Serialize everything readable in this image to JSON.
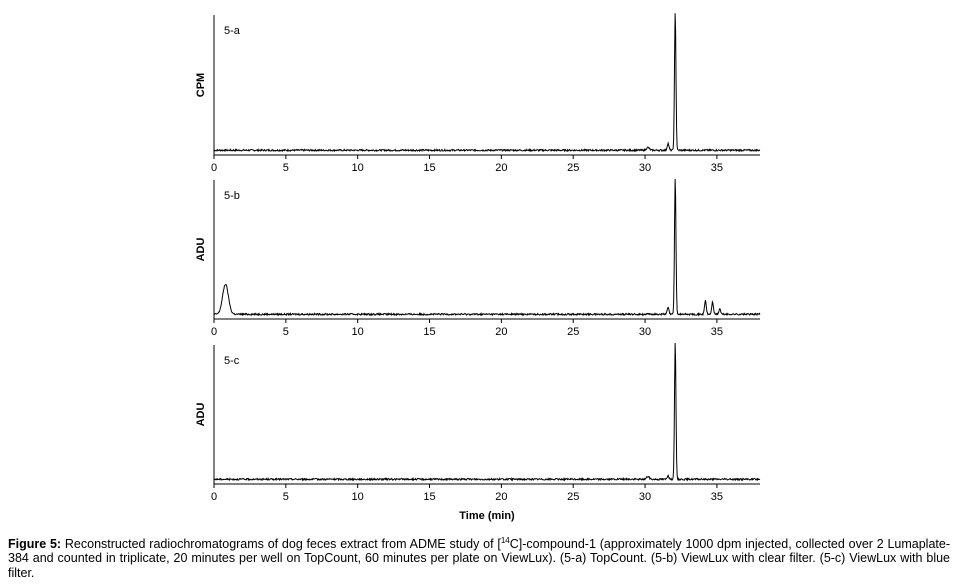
{
  "chart_data": [
    {
      "type": "line",
      "panel_label": "5-a",
      "ylabel": "CPM",
      "xlabel": "",
      "xlim": [
        0,
        38
      ],
      "x_ticks": [
        0,
        5,
        10,
        15,
        20,
        25,
        30,
        35
      ],
      "series": [
        {
          "baseline": 0.02,
          "peaks": [
            [
              30.2,
              0.02,
              0.1
            ],
            [
              31.6,
              0.05,
              0.06
            ],
            [
              32.1,
              1.0,
              0.05
            ]
          ]
        }
      ]
    },
    {
      "type": "line",
      "panel_label": "5-b",
      "ylabel": "ADU",
      "xlabel": "",
      "xlim": [
        0,
        38
      ],
      "x_ticks": [
        0,
        5,
        10,
        15,
        20,
        25,
        30,
        35
      ],
      "series": [
        {
          "baseline": 0.02,
          "peaks": [
            [
              0.8,
              0.22,
              0.2
            ],
            [
              31.6,
              0.05,
              0.06
            ],
            [
              32.1,
              1.0,
              0.05
            ],
            [
              34.2,
              0.1,
              0.06
            ],
            [
              34.7,
              0.09,
              0.06
            ],
            [
              35.2,
              0.04,
              0.06
            ]
          ]
        }
      ]
    },
    {
      "type": "line",
      "panel_label": "5-c",
      "ylabel": "ADU",
      "xlabel": "Time (min)",
      "xlim": [
        0,
        38
      ],
      "x_ticks": [
        0,
        5,
        10,
        15,
        20,
        25,
        30,
        35
      ],
      "series": [
        {
          "baseline": 0.02,
          "peaks": [
            [
              30.2,
              0.02,
              0.1
            ],
            [
              31.6,
              0.03,
              0.06
            ],
            [
              32.1,
              1.0,
              0.05
            ]
          ]
        }
      ]
    }
  ],
  "caption": {
    "label": "Figure 5:",
    "text_before_sup": "Reconstructed radiochromatograms of dog feces extract from ADME study of [",
    "sup": "14",
    "text_after_sup": "C]-compound-1 (approximately 1000 dpm injected, collected over 2 Lumaplate-384 and counted in triplicate, 20 minutes per well on TopCount, 60 minutes per plate on ViewLux). (5-a) TopCount. (5-b) ViewLux with clear filter. (5-c) ViewLux with blue filter."
  }
}
